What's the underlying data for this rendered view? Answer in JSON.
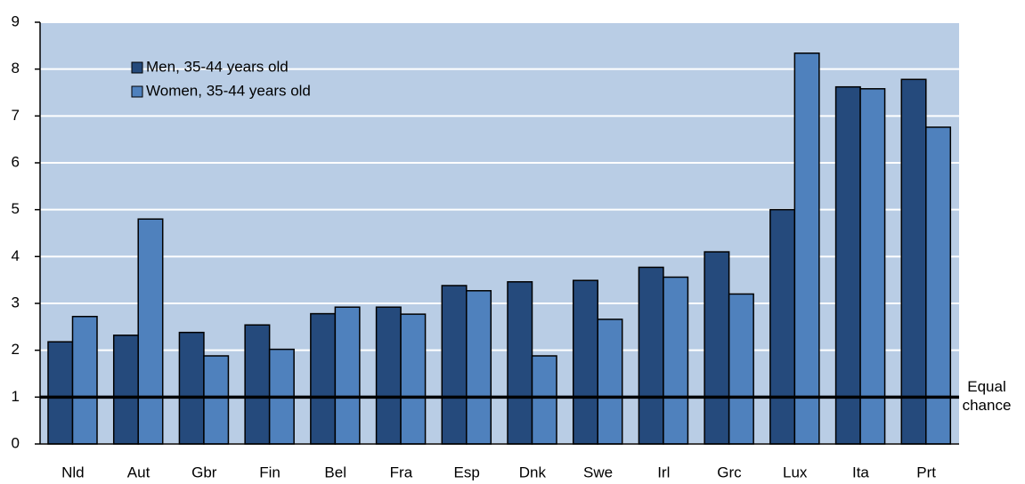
{
  "chart_data": {
    "type": "bar",
    "categories": [
      "Nld",
      "Aut",
      "Gbr",
      "Fin",
      "Bel",
      "Fra",
      "Esp",
      "Dnk",
      "Swe",
      "Irl",
      "Grc",
      "Lux",
      "Ita",
      "Prt"
    ],
    "series": [
      {
        "name": "Men, 35-44 years old",
        "color": "#254a7c",
        "values": [
          2.18,
          2.32,
          2.38,
          2.54,
          2.78,
          2.92,
          3.38,
          3.46,
          3.49,
          3.77,
          4.1,
          5.0,
          7.62,
          7.78
        ]
      },
      {
        "name": "Women, 35-44 years old",
        "color": "#4f81bd",
        "values": [
          2.72,
          4.8,
          1.88,
          2.02,
          2.92,
          2.77,
          3.27,
          1.88,
          2.66,
          3.56,
          3.2,
          8.34,
          7.58,
          6.76
        ]
      }
    ],
    "ylim": [
      0,
      9
    ],
    "yticks": [
      0,
      1,
      2,
      3,
      4,
      5,
      6,
      7,
      8,
      9
    ],
    "grid": true,
    "plot_background": "#b9cde5",
    "reference_line": {
      "value": 1,
      "label": [
        "Equal",
        "chance"
      ]
    },
    "legend": "upper left"
  }
}
